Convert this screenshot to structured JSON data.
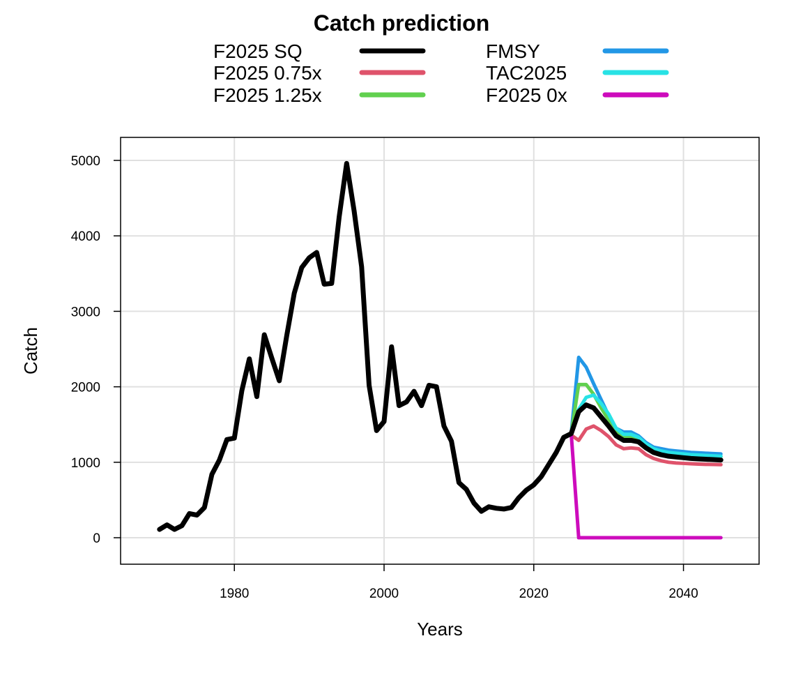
{
  "chart_data": {
    "type": "line",
    "title": "Catch prediction",
    "xlabel": "Years",
    "ylabel": "Catch",
    "xlim": [
      1964.8,
      2050.1
    ],
    "ylim": [
      -351,
      5305
    ],
    "xticks": [
      1980,
      2000,
      2020,
      2040
    ],
    "yticks": [
      0,
      1000,
      2000,
      3000,
      4000,
      5000
    ],
    "grid": true,
    "legend_position": "top",
    "historical": {
      "x": [
        1970,
        1971,
        1972,
        1973,
        1974,
        1975,
        1976,
        1977,
        1978,
        1979,
        1980,
        1981,
        1982,
        1983,
        1984,
        1985,
        1986,
        1987,
        1988,
        1989,
        1990,
        1991,
        1992,
        1993,
        1994,
        1995,
        1996,
        1997,
        1998,
        1999,
        2000,
        2001,
        2002,
        2003,
        2004,
        2005,
        2006,
        2007,
        2008,
        2009,
        2010,
        2011,
        2012,
        2013,
        2014,
        2015,
        2016,
        2017,
        2018,
        2019,
        2020,
        2021,
        2022,
        2023,
        2024,
        2025
      ],
      "y": [
        110,
        170,
        110,
        160,
        320,
        300,
        400,
        840,
        1030,
        1300,
        1320,
        1950,
        2370,
        1870,
        2690,
        2380,
        2080,
        2680,
        3240,
        3580,
        3710,
        3780,
        3360,
        3370,
        4250,
        4960,
        4330,
        3590,
        2020,
        1420,
        1540,
        2530,
        1750,
        1800,
        1940,
        1750,
        2020,
        2000,
        1480,
        1280,
        730,
        640,
        460,
        350,
        410,
        390,
        380,
        400,
        530,
        630,
        700,
        810,
        970,
        1130,
        1330,
        1380
      ]
    },
    "projection_x": [
      2025,
      2026,
      2027,
      2028,
      2029,
      2030,
      2031,
      2032,
      2033,
      2034,
      2035,
      2036,
      2037,
      2038,
      2039,
      2040,
      2041,
      2042,
      2043,
      2044,
      2045
    ],
    "series": [
      {
        "name": "F2025 SQ",
        "color": "#000000",
        "values": [
          1380,
          1670,
          1760,
          1720,
          1600,
          1480,
          1350,
          1290,
          1290,
          1270,
          1190,
          1130,
          1100,
          1080,
          1070,
          1060,
          1050,
          1045,
          1040,
          1035,
          1030
        ]
      },
      {
        "name": "F2025 0.75x",
        "color": "#DF536B",
        "values": [
          1360,
          1290,
          1440,
          1480,
          1420,
          1340,
          1230,
          1180,
          1190,
          1180,
          1100,
          1050,
          1020,
          1000,
          990,
          985,
          980,
          975,
          972,
          970,
          968
        ]
      },
      {
        "name": "F2025 1.25x",
        "color": "#61D04F",
        "values": [
          1380,
          2030,
          2030,
          1900,
          1720,
          1560,
          1410,
          1340,
          1340,
          1320,
          1235,
          1175,
          1145,
          1125,
          1115,
          1105,
          1095,
          1090,
          1085,
          1080,
          1075
        ]
      },
      {
        "name": "FMSY",
        "color": "#2297E6",
        "values": [
          1380,
          2390,
          2260,
          2040,
          1830,
          1620,
          1450,
          1400,
          1400,
          1350,
          1260,
          1200,
          1180,
          1160,
          1150,
          1140,
          1130,
          1125,
          1120,
          1115,
          1110
        ]
      },
      {
        "name": "TAC2025",
        "color": "#28E2E5",
        "values": [
          1380,
          1700,
          1860,
          1890,
          1780,
          1640,
          1450,
          1370,
          1370,
          1330,
          1240,
          1180,
          1150,
          1130,
          1120,
          1110,
          1100,
          1095,
          1090,
          1085,
          1080
        ]
      },
      {
        "name": "F2025 0x",
        "color": "#CD0BBC",
        "values": [
          1380,
          0,
          0,
          0,
          0,
          0,
          0,
          0,
          0,
          0,
          0,
          0,
          0,
          0,
          0,
          0,
          0,
          0,
          0,
          0,
          0
        ]
      }
    ]
  }
}
